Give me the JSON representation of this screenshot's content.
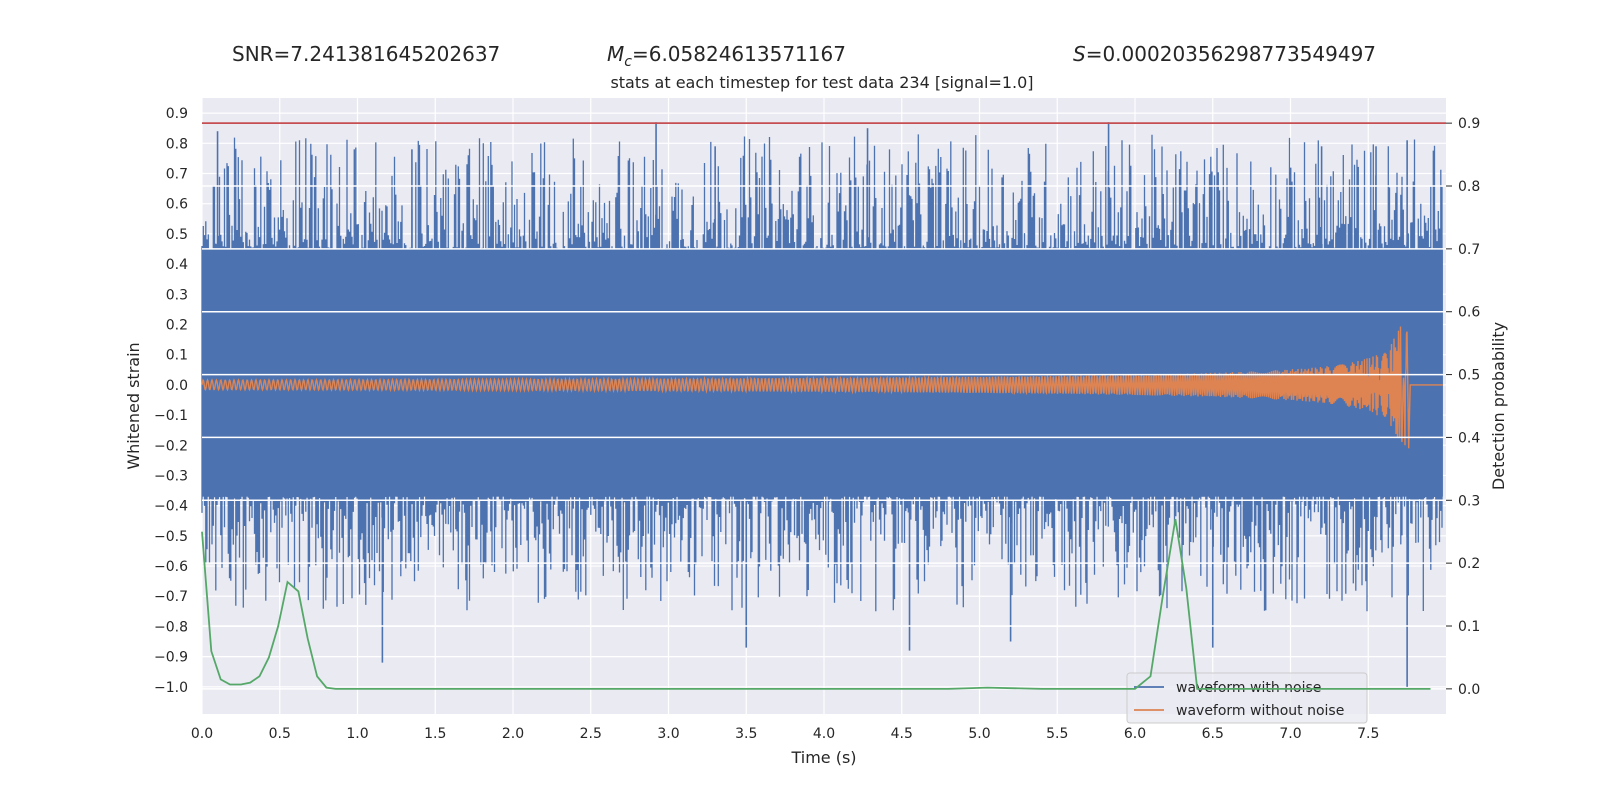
{
  "header": {
    "snr": "SNR=7.241381645202637",
    "mc_symbol": "M",
    "mc_sub": "c",
    "mc_value": "=6.05824613571167",
    "s_symbol": "S",
    "s_value": "=0.00020356298773549497"
  },
  "chart_data": {
    "type": "line",
    "title": "stats at each timestep for test data 234 [signal=1.0]",
    "xlabel": "Time (s)",
    "ylabel": "Whitened strain",
    "ylabel_right": "Detection probability",
    "xlim": [
      0.0,
      8.0
    ],
    "ylim": [
      -1.09,
      0.95
    ],
    "ylim_right": [
      -0.04,
      0.94
    ],
    "grid": true,
    "x_ticks": [
      "0.0",
      "0.5",
      "1.0",
      "1.5",
      "2.0",
      "2.5",
      "3.0",
      "3.5",
      "4.0",
      "4.5",
      "5.0",
      "5.5",
      "6.0",
      "6.5",
      "7.0",
      "7.5"
    ],
    "y_ticks": [
      "0.9",
      "0.8",
      "0.7",
      "0.6",
      "0.5",
      "0.4",
      "0.3",
      "0.2",
      "0.1",
      "0.0",
      "-0.1",
      "-0.2",
      "-0.3",
      "-0.4",
      "-0.5",
      "-0.6",
      "-0.7",
      "-0.8",
      "-0.9",
      "-1.0"
    ],
    "y2_ticks": [
      "0.9",
      "0.8",
      "0.7",
      "0.6",
      "0.5",
      "0.4",
      "0.3",
      "0.2",
      "0.1",
      "0.0"
    ],
    "legend_position": "lower right",
    "colors": {
      "noise": "#4c72b0",
      "signal": "#dd8452",
      "probability": "#55a868",
      "threshold": "#c44e52",
      "background": "#eaeaf2",
      "grid": "#ffffff"
    },
    "series": [
      {
        "name": "waveform with noise",
        "color": "#4c72b0",
        "band_low": -0.37,
        "band_high": 0.45,
        "peaks": [
          {
            "x": 0.1,
            "y": 0.84
          },
          {
            "x": 0.98,
            "y": 0.78
          },
          {
            "x": 1.35,
            "y": 0.78
          },
          {
            "x": 2.92,
            "y": 0.87
          },
          {
            "x": 3.3,
            "y": 0.79
          },
          {
            "x": 4.28,
            "y": 0.85
          },
          {
            "x": 5.83,
            "y": 0.87
          },
          {
            "x": 7.2,
            "y": 0.79
          },
          {
            "x": 7.55,
            "y": 0.79
          },
          {
            "x": 7.75,
            "y": 0.81
          }
        ],
        "troughs": [
          {
            "x": 1.16,
            "y": -0.92
          },
          {
            "x": 3.5,
            "y": -0.87
          },
          {
            "x": 4.55,
            "y": -0.88
          },
          {
            "x": 5.2,
            "y": -0.85
          },
          {
            "x": 6.5,
            "y": -0.87
          },
          {
            "x": 7.75,
            "y": -1.0
          }
        ]
      },
      {
        "name": "waveform without noise",
        "color": "#dd8452",
        "start_amplitude": 0.016,
        "end_amplitude_high": 0.16,
        "end_amplitude_low": -0.21,
        "merger_time": 7.75
      },
      {
        "name": "Detection probability",
        "axis": "right",
        "color": "#55a868",
        "x": [
          0.0,
          0.06,
          0.12,
          0.18,
          0.25,
          0.31,
          0.37,
          0.43,
          0.49,
          0.55,
          0.62,
          0.68,
          0.74,
          0.8,
          0.86,
          1.0,
          2.0,
          3.0,
          4.0,
          4.8,
          5.05,
          5.4,
          6.0,
          6.1,
          6.18,
          6.26,
          6.33,
          6.4,
          6.5,
          7.0,
          7.9
        ],
        "y": [
          0.25,
          0.06,
          0.015,
          0.007,
          0.007,
          0.01,
          0.02,
          0.05,
          0.1,
          0.17,
          0.155,
          0.08,
          0.02,
          0.002,
          0.0,
          0.0,
          0.0,
          0.0,
          0.0,
          0.0,
          0.002,
          0.0,
          0.0,
          0.02,
          0.15,
          0.27,
          0.16,
          0.0,
          0.0,
          0.0,
          0.0
        ]
      }
    ],
    "threshold": {
      "axis": "right",
      "value": 0.9,
      "color": "#c44e52"
    }
  }
}
